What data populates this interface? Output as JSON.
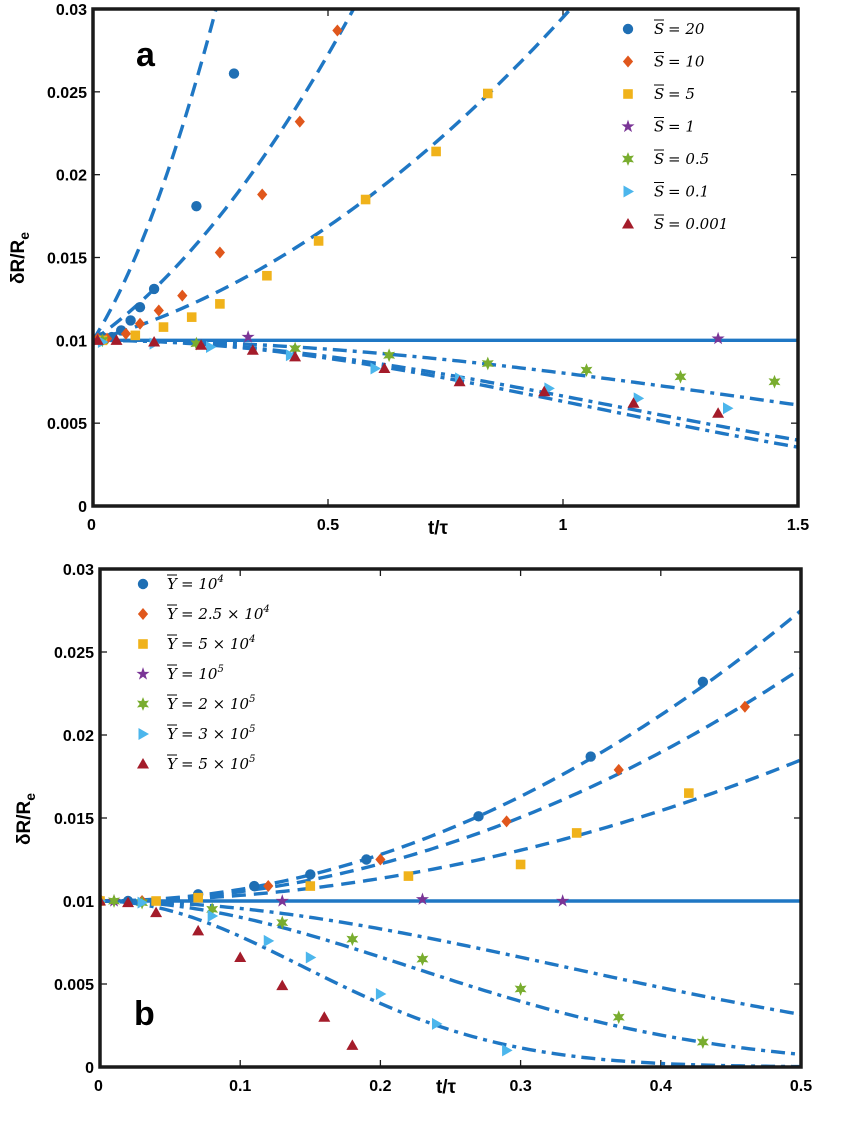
{
  "colors": {
    "fit_line": "#1f77c4",
    "axes": "#1a1a1a",
    "markers": [
      "#1f6fb4",
      "#e0571c",
      "#f0b21a",
      "#7a3596",
      "#79ad2f",
      "#4cb6ec",
      "#a41c2a"
    ]
  },
  "chart_data": [
    {
      "type": "scatter",
      "panel": "a",
      "xlabel": "t/τ",
      "ylabel": "δR/R_e",
      "ylabel_main": "δR/R",
      "ylabel_sub": "e",
      "xlim": [
        0,
        1.5
      ],
      "ylim": [
        0,
        0.03
      ],
      "xticks": [
        0,
        0.5,
        1,
        1.5
      ],
      "xtick_labels": [
        "0",
        "0.5",
        "1",
        "1.5"
      ],
      "yticks": [
        0,
        0.005,
        0.01,
        0.015,
        0.02,
        0.025,
        0.03
      ],
      "ytick_labels": [
        "0",
        "0.005",
        "0.01",
        "0.015",
        "0.02",
        "0.025",
        "0.03"
      ],
      "legend_position": "top-right",
      "legend_symbol": "S",
      "series": [
        {
          "name": "S̄ = 20",
          "value_text": "= 20",
          "marker": "circle",
          "line_style": "dashed",
          "fit": {
            "c1": 0.045,
            "c2": 0.12
          },
          "points": [
            [
              0.01,
              0.0101
            ],
            [
              0.02,
              0.0102
            ],
            [
              0.04,
              0.0102
            ],
            [
              0.06,
              0.0106
            ],
            [
              0.08,
              0.0112
            ],
            [
              0.1,
              0.012
            ],
            [
              0.13,
              0.0131
            ],
            [
              0.22,
              0.0181
            ],
            [
              0.3,
              0.0261
            ]
          ]
        },
        {
          "name": "S̄ = 10",
          "value_text": "= 10",
          "marker": "diamond",
          "line_style": "dashed",
          "fit": {
            "c1": 0.02,
            "c2": 0.029
          },
          "points": [
            [
              0.01,
              0.0101
            ],
            [
              0.03,
              0.0101
            ],
            [
              0.07,
              0.0104
            ],
            [
              0.1,
              0.011
            ],
            [
              0.14,
              0.0118
            ],
            [
              0.19,
              0.0127
            ],
            [
              0.27,
              0.0153
            ],
            [
              0.36,
              0.0188
            ],
            [
              0.44,
              0.0232
            ],
            [
              0.52,
              0.0287
            ]
          ]
        },
        {
          "name": "S̄ = 5",
          "value_text": "= 5",
          "marker": "square",
          "line_style": "dashed",
          "fit": {
            "c1": 0.008,
            "c2": 0.0115
          },
          "points": [
            [
              0.02,
              0.01
            ],
            [
              0.09,
              0.0103
            ],
            [
              0.15,
              0.0108
            ],
            [
              0.21,
              0.0114
            ],
            [
              0.27,
              0.0122
            ],
            [
              0.37,
              0.0139
            ],
            [
              0.48,
              0.016
            ],
            [
              0.58,
              0.0185
            ],
            [
              0.73,
              0.0214
            ],
            [
              0.84,
              0.0249
            ]
          ]
        },
        {
          "name": "S̄ = 1",
          "value_text": "= 1",
          "marker": "star",
          "line_style": "solid",
          "fit": {
            "k": 0.0
          },
          "points": [
            [
              0.01,
              0.01
            ],
            [
              0.33,
              0.0102
            ],
            [
              1.33,
              0.0101
            ]
          ]
        },
        {
          "name": "S̄ = 0.5",
          "value_text": "= 0.5",
          "marker": "star6",
          "line_style": "dashdot",
          "fit": {
            "k": 0.22
          },
          "points": [
            [
              0.02,
              0.01
            ],
            [
              0.22,
              0.0098
            ],
            [
              0.43,
              0.0095
            ],
            [
              0.63,
              0.0091
            ],
            [
              0.84,
              0.0086
            ],
            [
              1.05,
              0.0082
            ],
            [
              1.25,
              0.0078
            ],
            [
              1.45,
              0.0075
            ]
          ]
        },
        {
          "name": "S̄ = 0.1",
          "value_text": "= 0.1",
          "marker": "tri-right",
          "line_style": "dashdot",
          "fit": {
            "k": 0.41
          },
          "points": [
            [
              0.02,
              0.0099
            ],
            [
              0.13,
              0.0098
            ],
            [
              0.25,
              0.0096
            ],
            [
              0.42,
              0.0091
            ],
            [
              0.6,
              0.0083
            ],
            [
              0.78,
              0.0077
            ],
            [
              0.97,
              0.0071
            ],
            [
              1.16,
              0.0065
            ],
            [
              1.35,
              0.0059
            ]
          ]
        },
        {
          "name": "S̄ = 0.001",
          "value_text": "= 0.001",
          "marker": "tri-up",
          "line_style": "dashdot",
          "fit": {
            "k": 0.46
          },
          "points": [
            [
              0.01,
              0.01
            ],
            [
              0.05,
              0.01
            ],
            [
              0.13,
              0.0099
            ],
            [
              0.23,
              0.0097
            ],
            [
              0.34,
              0.0094
            ],
            [
              0.43,
              0.009
            ],
            [
              0.62,
              0.0083
            ],
            [
              0.78,
              0.0075
            ],
            [
              0.96,
              0.0069
            ],
            [
              1.15,
              0.0062
            ],
            [
              1.33,
              0.0056
            ]
          ]
        }
      ],
      "annotation": "a"
    },
    {
      "type": "scatter",
      "panel": "b",
      "xlabel": "t/τ",
      "ylabel": "δR/R_e",
      "ylabel_main": "δR/R",
      "ylabel_sub": "e",
      "xlim": [
        0,
        0.5
      ],
      "ylim": [
        0,
        0.03
      ],
      "xticks": [
        0,
        0.1,
        0.2,
        0.3,
        0.4,
        0.5
      ],
      "xtick_labels": [
        "0",
        "0.1",
        "0.2",
        "0.3",
        "0.4",
        "0.5"
      ],
      "yticks": [
        0,
        0.005,
        0.01,
        0.015,
        0.02,
        0.025,
        0.03
      ],
      "ytick_labels": [
        "0",
        "0.005",
        "0.01",
        "0.015",
        "0.02",
        "0.025",
        "0.03"
      ],
      "legend_position": "top-left",
      "legend_symbol": "Y",
      "series": [
        {
          "name": "Ȳ = 10^4",
          "value_text": "= 10",
          "value_sup": "4",
          "marker": "circle",
          "line_style": "dashed",
          "fit": {
            "c1": 0.0,
            "c2": 0.07
          },
          "points": [
            [
              0.0,
              0.01
            ],
            [
              0.02,
              0.01
            ],
            [
              0.07,
              0.0104
            ],
            [
              0.11,
              0.0109
            ],
            [
              0.15,
              0.0116
            ],
            [
              0.19,
              0.0125
            ],
            [
              0.27,
              0.0151
            ],
            [
              0.35,
              0.0187
            ],
            [
              0.43,
              0.0232
            ]
          ]
        },
        {
          "name": "Ȳ = 2.5 × 10^4",
          "value_text": "= 2.5 × 10",
          "value_sup": "4",
          "marker": "diamond",
          "line_style": "dashed",
          "fit": {
            "c1": 0.0,
            "c2": 0.056
          },
          "points": [
            [
              0.0,
              0.0101
            ],
            [
              0.03,
              0.01
            ],
            [
              0.12,
              0.0109
            ],
            [
              0.2,
              0.0125
            ],
            [
              0.29,
              0.0148
            ],
            [
              0.37,
              0.0179
            ],
            [
              0.46,
              0.0217
            ]
          ]
        },
        {
          "name": "Ȳ = 5 × 10^4",
          "value_text": "= 5 × 10",
          "value_sup": "4",
          "marker": "square",
          "line_style": "dashed",
          "fit": {
            "c1": 0.0,
            "c2": 0.034
          },
          "points": [
            [
              0.0,
              0.01
            ],
            [
              0.04,
              0.01
            ],
            [
              0.07,
              0.0102
            ],
            [
              0.15,
              0.0109
            ],
            [
              0.22,
              0.0115
            ],
            [
              0.3,
              0.0122
            ],
            [
              0.34,
              0.0141
            ],
            [
              0.42,
              0.0165
            ]
          ]
        },
        {
          "name": "Ȳ = 10^5",
          "value_text": "= 10",
          "value_sup": "5",
          "marker": "star",
          "line_style": "solid",
          "fit": {
            "k": 0.0
          },
          "points": [
            [
              0.01,
              0.01
            ],
            [
              0.13,
              0.01
            ],
            [
              0.23,
              0.0101
            ],
            [
              0.33,
              0.01
            ]
          ]
        },
        {
          "name": "Ȳ = 2 × 10^5",
          "value_text": "= 2 × 10",
          "value_sup": "5",
          "marker": "star6",
          "line_style": "dashdot",
          "fit": {
            "k": 4.6
          },
          "points": [
            [
              0.01,
              0.01
            ],
            [
              0.03,
              0.0099
            ],
            [
              0.08,
              0.0095
            ],
            [
              0.13,
              0.0087
            ],
            [
              0.18,
              0.0077
            ],
            [
              0.23,
              0.0065
            ],
            [
              0.3,
              0.0047
            ],
            [
              0.37,
              0.003
            ],
            [
              0.43,
              0.0015
            ]
          ]
        },
        {
          "name": "Ȳ = 3 × 10^5",
          "value_text": "= 3 × 10",
          "value_sup": "5",
          "marker": "tri-right",
          "line_style": "dashdot",
          "fit": {
            "k": 10.3
          },
          "points": [
            [
              0.0,
              0.01
            ],
            [
              0.03,
              0.0099
            ],
            [
              0.08,
              0.0091
            ],
            [
              0.12,
              0.0076
            ],
            [
              0.15,
              0.0066
            ],
            [
              0.2,
              0.0044
            ],
            [
              0.24,
              0.0026
            ],
            [
              0.29,
              0.001
            ]
          ]
        },
        {
          "name": "Ȳ = 5 × 10^5",
          "value_text": "= 5 × 10",
          "value_sup": "5",
          "marker": "tri-up",
          "line_style": "dashdot",
          "fit": {
            "k": 24.0
          },
          "points": [
            [
              0.0,
              0.01
            ],
            [
              0.02,
              0.0099
            ],
            [
              0.04,
              0.0093
            ],
            [
              0.07,
              0.0082
            ],
            [
              0.1,
              0.0066
            ],
            [
              0.13,
              0.0049
            ],
            [
              0.16,
              0.003
            ],
            [
              0.18,
              0.0013
            ]
          ]
        }
      ],
      "annotation": "b"
    }
  ]
}
